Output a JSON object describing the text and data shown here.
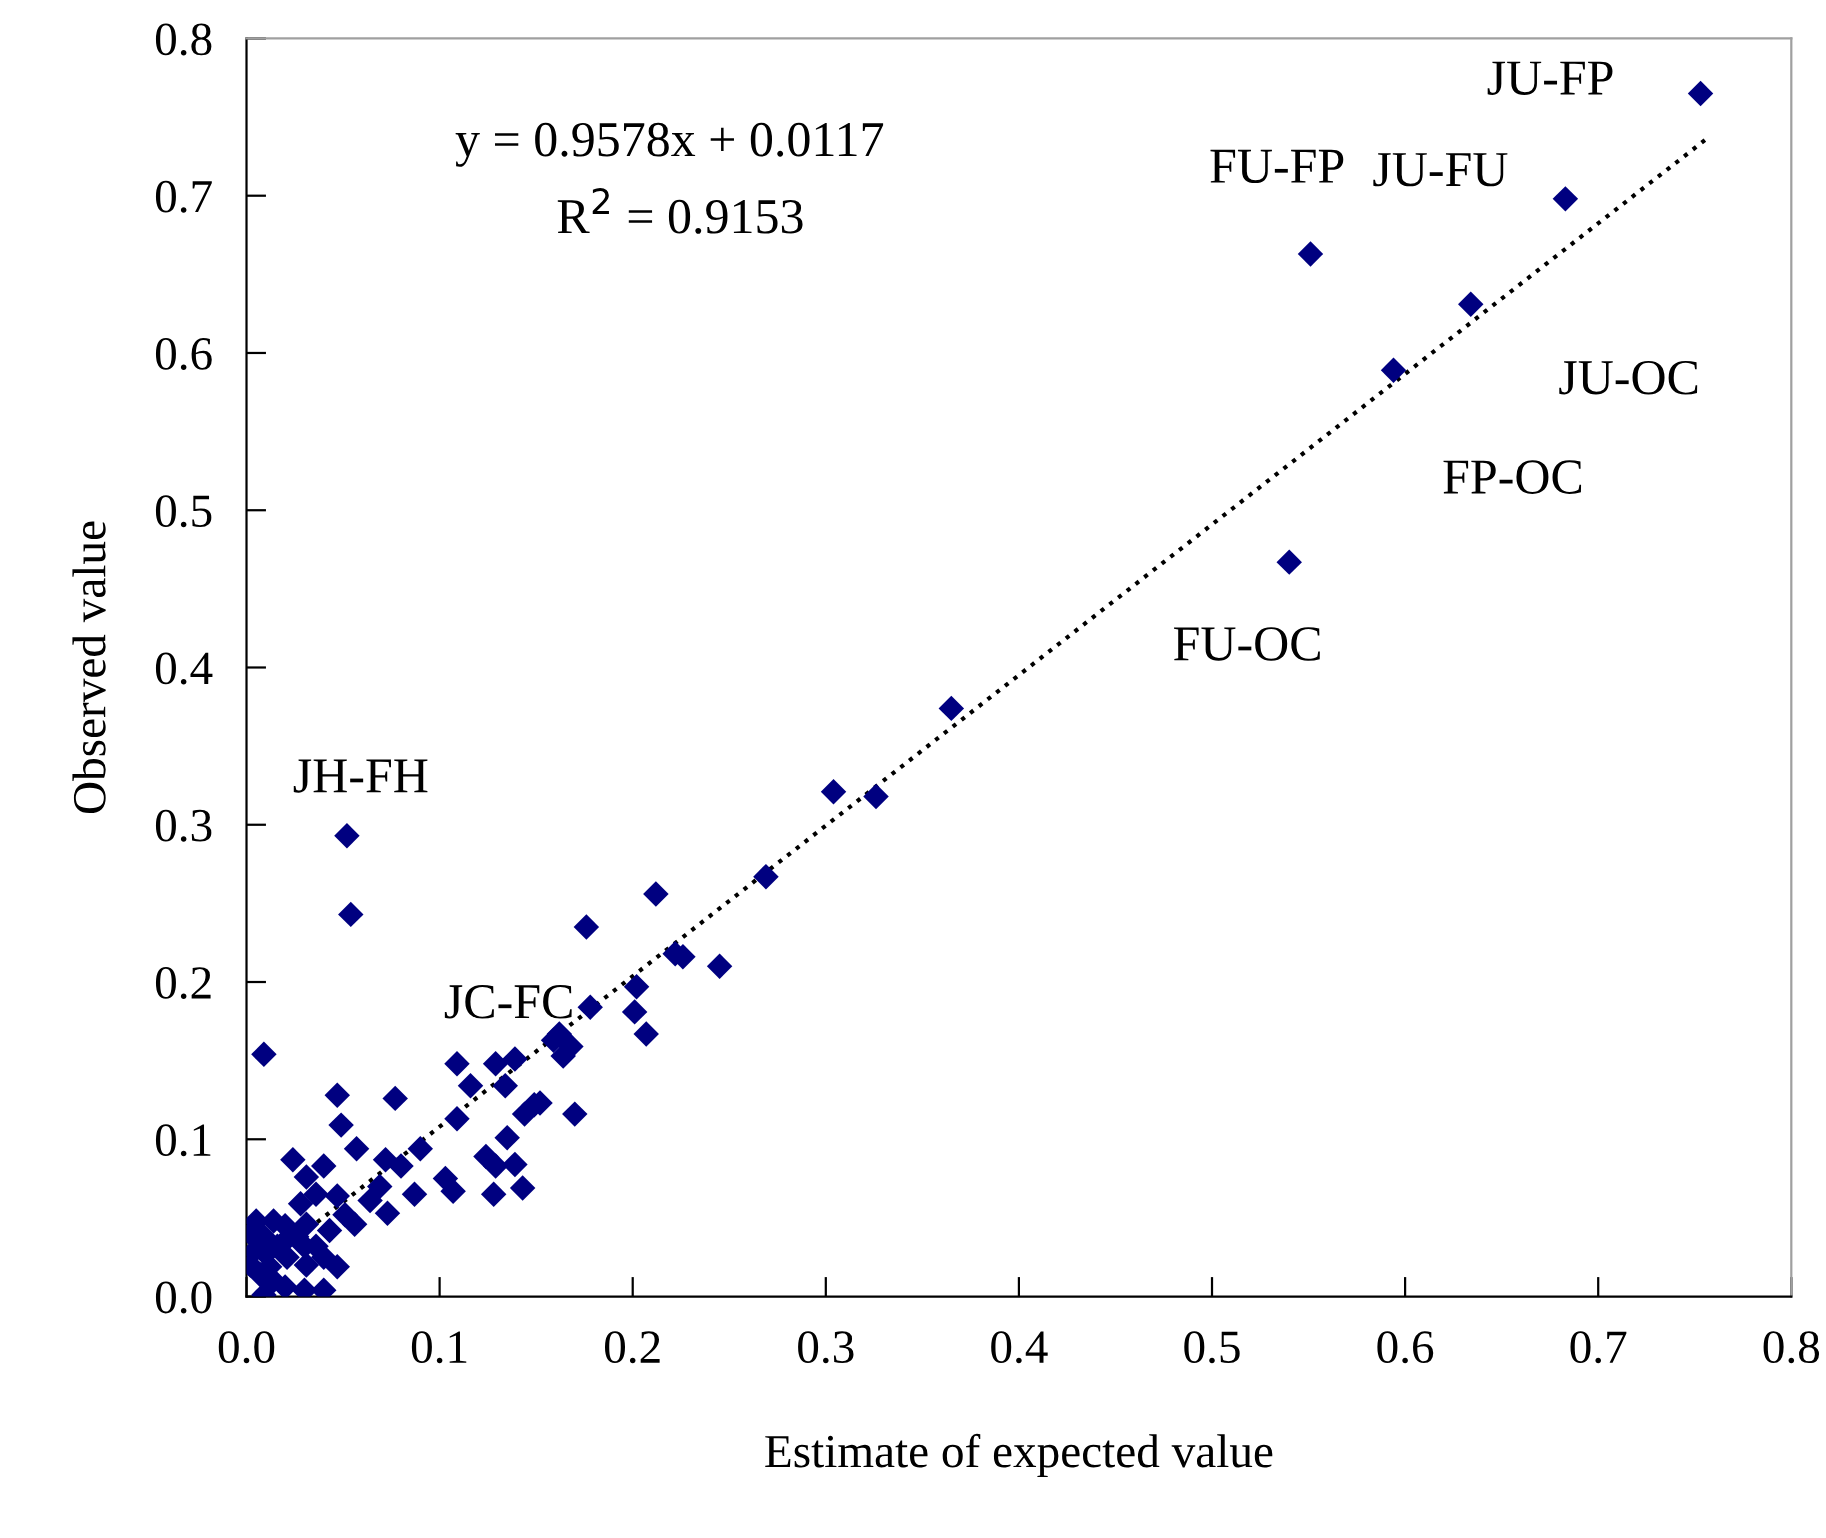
{
  "chart_data": {
    "type": "scatter",
    "xlabel": "Estimate of expected value",
    "ylabel": "Observed value",
    "xlim": [
      0,
      0.8
    ],
    "ylim": [
      0,
      0.8
    ],
    "xticks": [
      {
        "value": 0,
        "label": "0.0"
      },
      0.1,
      0.2,
      0.3,
      0.4,
      0.5,
      0.6,
      0.7,
      0.8
    ],
    "yticks": [
      {
        "value": 0,
        "label": "0.0"
      },
      0.1,
      0.2,
      0.3,
      0.4,
      0.5,
      0.6,
      0.7,
      0.8
    ],
    "grid": false,
    "legend": false,
    "marker": "diamond",
    "series": [
      {
        "color": "#000080",
        "x": [
          0.753,
          0.683,
          0.551,
          0.634,
          0.594,
          0.54,
          0.052,
          0.054,
          0.176,
          0.212,
          0.269,
          0.222,
          0.226,
          0.245,
          0.178,
          0.202,
          0.201,
          0.207,
          0.162,
          0.168,
          0.164,
          0.152,
          0.17,
          0.304,
          0.326,
          0.365,
          0.009,
          0.109,
          0.129,
          0.139,
          0.116,
          0.134,
          0.149,
          0.144,
          0.159,
          0.047,
          0.077,
          0.049,
          0.109,
          0.057,
          0.09,
          0.135,
          0.024,
          0.04,
          0.072,
          0.08,
          0.124,
          0.129,
          0.139,
          0.103,
          0.107,
          0.128,
          0.143,
          0.087,
          0.069,
          0.064,
          0.073,
          0.031,
          0.036,
          0.047,
          0.028,
          0.051,
          0.056,
          0.043,
          0.031,
          0.005,
          0.014,
          0.02,
          0.002,
          0.009,
          0.026,
          0.018,
          0.004,
          0.01,
          0.021,
          0.03,
          0.036,
          0.04,
          0.002,
          0.012,
          0.031,
          0.047,
          0.007,
          0.014,
          0.009,
          0.03,
          0.04,
          0.02,
          0.016
        ],
        "values": [
          0.765,
          0.698,
          0.663,
          0.631,
          0.589,
          0.467,
          0.293,
          0.243,
          0.235,
          0.256,
          0.267,
          0.218,
          0.216,
          0.21,
          0.184,
          0.197,
          0.181,
          0.167,
          0.167,
          0.159,
          0.153,
          0.123,
          0.116,
          0.321,
          0.318,
          0.374,
          0.154,
          0.148,
          0.148,
          0.151,
          0.134,
          0.134,
          0.122,
          0.116,
          0.163,
          0.128,
          0.126,
          0.109,
          0.113,
          0.094,
          0.094,
          0.101,
          0.087,
          0.083,
          0.087,
          0.083,
          0.089,
          0.083,
          0.084,
          0.075,
          0.067,
          0.065,
          0.069,
          0.065,
          0.07,
          0.061,
          0.053,
          0.076,
          0.065,
          0.064,
          0.059,
          0.052,
          0.046,
          0.042,
          0.046,
          0.048,
          0.048,
          0.045,
          0.04,
          0.038,
          0.038,
          0.033,
          0.029,
          0.027,
          0.025,
          0.032,
          0.032,
          0.025,
          0.02,
          0.019,
          0.02,
          0.019,
          0.014,
          0.01,
          0.001,
          0.004,
          0.004,
          0.006,
          0.032
        ]
      },
      {
        "type": "line",
        "color": "#000000",
        "line_style": "dotted",
        "marker": "none",
        "x": [
          0.005,
          0.757
        ],
        "values": [
          0.017,
          0.737
        ]
      }
    ],
    "annotations": [
      "y = 0.9578x + 0.0117",
      "R$^{2}$ = 0.9153",
      {
        "text": "JU-FP",
        "x": 0.753,
        "y": 0.765
      },
      {
        "text": "JU-FU",
        "x": 0.683,
        "y": 0.698
      },
      {
        "text": "FU-FP",
        "x": 0.551,
        "y": 0.663
      },
      {
        "text": "JU-OC",
        "x": 0.634,
        "y": 0.631
      },
      {
        "text": "FP-OC",
        "x": 0.594,
        "y": 0.589
      },
      {
        "text": "FU-OC",
        "x": 0.54,
        "y": 0.467
      },
      {
        "text": "JH-FH",
        "x": 0.052,
        "y": 0.293
      },
      {
        "text": "JC-FC",
        "x": 0.054,
        "y": 0.243
      }
    ]
  }
}
